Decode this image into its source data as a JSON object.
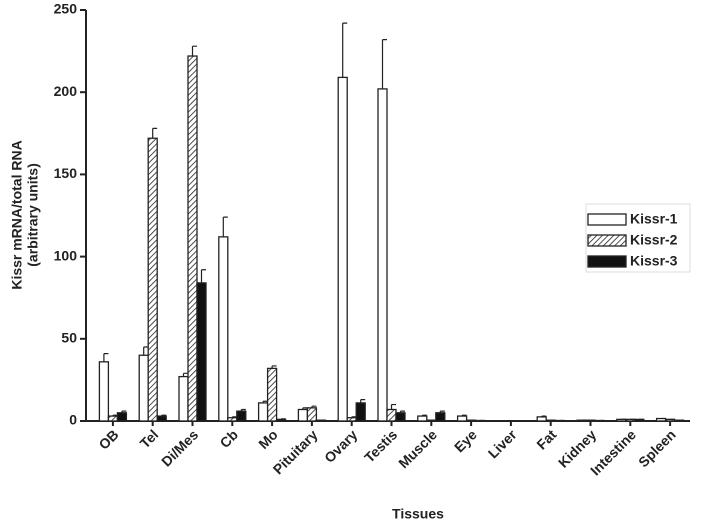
{
  "chart_data": {
    "type": "bar",
    "ylabel": [
      "Kissr mRNA/total RNA",
      "(arbitrary units)"
    ],
    "xlabel": "Tissues",
    "categories": [
      "OB",
      "Tel",
      "Di/Mes",
      "Cb",
      "Mo",
      "Pituitary",
      "Ovary",
      "Testis",
      "Muscle",
      "Eye",
      "Liver",
      "Fat",
      "Kidney",
      "Intestine",
      "Spleen"
    ],
    "series": [
      {
        "name": "Kissr-1",
        "color": "#ffffff",
        "values": [
          36,
          40,
          27,
          112,
          11,
          7,
          209,
          202,
          3,
          3,
          0.2,
          2.5,
          0.5,
          1,
          1.5
        ],
        "errors": [
          5,
          5,
          2,
          12,
          1,
          1,
          33,
          30,
          0.5,
          0.5,
          0,
          0.5,
          0,
          0,
          0
        ]
      },
      {
        "name": "Kissr-2",
        "color": "#ffffff",
        "pattern": "hatch",
        "values": [
          3,
          172,
          222,
          2,
          32,
          8,
          2,
          7,
          0.5,
          0.5,
          0.2,
          0.5,
          0.5,
          1,
          1
        ],
        "errors": [
          0.5,
          6,
          6,
          0.5,
          1.5,
          1,
          0.5,
          3,
          0,
          0,
          0,
          0,
          0,
          0,
          0
        ]
      },
      {
        "name": "Kissr-3",
        "color": "#111111",
        "values": [
          5,
          3,
          84,
          6,
          1,
          0.5,
          11,
          5,
          5,
          0.3,
          0.2,
          0.3,
          0.3,
          1,
          0.5
        ],
        "errors": [
          1,
          0.5,
          8,
          1,
          0.3,
          0,
          2,
          1,
          1,
          0,
          0,
          0,
          0,
          0,
          0
        ]
      }
    ],
    "ylim": [
      0,
      250
    ],
    "yticks": [
      0,
      50,
      100,
      150,
      200,
      250
    ],
    "legend": "right"
  }
}
